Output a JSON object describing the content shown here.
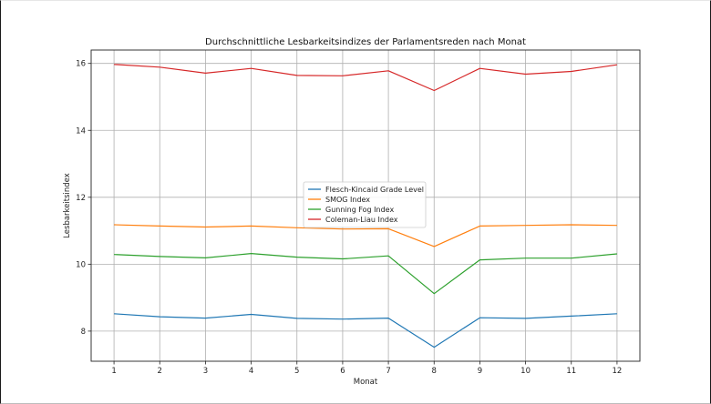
{
  "chart_data": {
    "type": "line",
    "title": "Durchschnittliche Lesbarkeitsindizes der Parlamentsreden nach Monat",
    "xlabel": "Monat",
    "ylabel": "Lesbarkeitsindex",
    "x": [
      1,
      2,
      3,
      4,
      5,
      6,
      7,
      8,
      9,
      10,
      11,
      12
    ],
    "xlim": [
      0.5,
      12.5
    ],
    "ylim": [
      7.1,
      16.4
    ],
    "xticks": [
      "1",
      "2",
      "3",
      "4",
      "5",
      "6",
      "7",
      "8",
      "9",
      "10",
      "11",
      "12"
    ],
    "yticks": [
      "8",
      "10",
      "12",
      "14",
      "16"
    ],
    "grid": true,
    "legend_position": "center",
    "series": [
      {
        "name": "Flesch-Kincaid Grade Level",
        "color": "#1f77b4",
        "values": [
          8.52,
          8.43,
          8.39,
          8.5,
          8.38,
          8.36,
          8.39,
          7.52,
          8.4,
          8.38,
          8.45,
          8.52
        ]
      },
      {
        "name": "SMOG Index",
        "color": "#ff7f0e",
        "values": [
          11.18,
          11.14,
          11.11,
          11.14,
          11.09,
          11.05,
          11.06,
          10.53,
          11.14,
          11.16,
          11.18,
          11.16
        ]
      },
      {
        "name": "Gunning Fog Index",
        "color": "#2ca02c",
        "values": [
          10.29,
          10.23,
          10.19,
          10.32,
          10.21,
          10.16,
          10.25,
          9.12,
          10.13,
          10.18,
          10.18,
          10.31
        ]
      },
      {
        "name": "Coleman-Liau Index",
        "color": "#d62728",
        "values": [
          15.97,
          15.89,
          15.71,
          15.85,
          15.64,
          15.63,
          15.78,
          15.19,
          15.85,
          15.68,
          15.76,
          15.96
        ]
      }
    ]
  }
}
